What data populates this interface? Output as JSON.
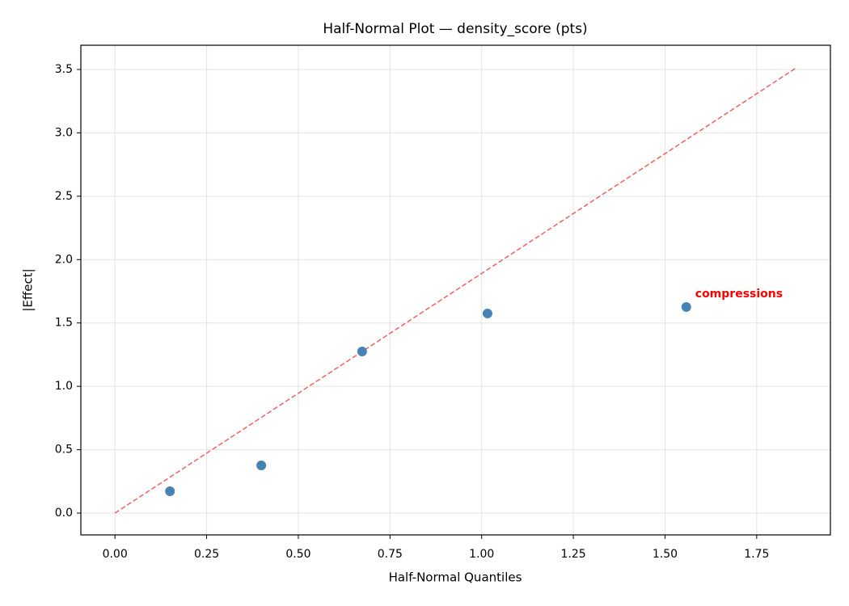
{
  "chart_data": {
    "type": "scatter",
    "title": "Half-Normal Plot — density_score (pts)",
    "xlabel": "Half-Normal Quantiles",
    "ylabel": "|Effect|",
    "x": [
      0.15,
      0.399,
      0.674,
      1.016,
      1.558
    ],
    "values": [
      0.172,
      0.376,
      1.275,
      1.575,
      1.626
    ],
    "color": "#4682b4",
    "reference_line": {
      "x": [
        0,
        1.858
      ],
      "values": [
        0,
        3.513
      ],
      "color": "#f26060"
    },
    "annotations": [
      {
        "text": "compressions",
        "x": 1.558,
        "y": 1.626,
        "color": "#ff0000"
      }
    ],
    "xlim": [
      -0.093,
      1.951
    ],
    "ylim": [
      -0.172,
      3.691
    ],
    "xticks": [
      {
        "value": 0,
        "label": "0.00"
      },
      {
        "value": 0.25,
        "label": "0.25"
      },
      {
        "value": 0.5,
        "label": "0.50"
      },
      {
        "value": 0.75,
        "label": "0.75"
      },
      {
        "value": 1,
        "label": "1.00"
      },
      {
        "value": 1.25,
        "label": "1.25"
      },
      {
        "value": 1.5,
        "label": "1.50"
      },
      {
        "value": 1.75,
        "label": "1.75"
      }
    ],
    "yticks": [
      {
        "value": 0,
        "label": "0.0"
      },
      {
        "value": 0.5,
        "label": "0.5"
      },
      {
        "value": 1,
        "label": "1.0"
      },
      {
        "value": 1.5,
        "label": "1.5"
      },
      {
        "value": 2,
        "label": "2.0"
      },
      {
        "value": 2.5,
        "label": "2.5"
      },
      {
        "value": 3,
        "label": "3.0"
      },
      {
        "value": 3.5,
        "label": "3.5"
      }
    ],
    "grid": true
  }
}
